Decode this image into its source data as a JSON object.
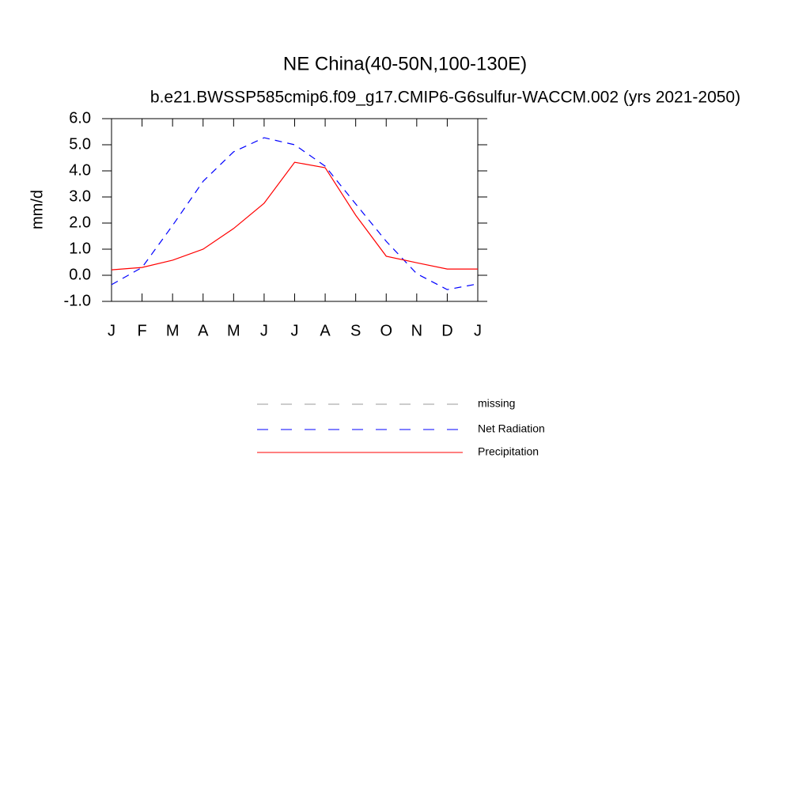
{
  "chart_data": {
    "type": "line",
    "title": "NE China(40-50N,100-130E)",
    "subtitle": "b.e21.BWSSP585cmip6.f09_g17.CMIP6-G6sulfur-WACCM.002 (yrs 2021-2050)",
    "y_label": "mm/d",
    "categories": [
      "J",
      "F",
      "M",
      "A",
      "M",
      "J",
      "J",
      "A",
      "S",
      "O",
      "N",
      "D",
      "J"
    ],
    "series": [
      {
        "name": "missing",
        "color": "#999999",
        "dash": true,
        "values": [
          null,
          null,
          null,
          null,
          null,
          null,
          null,
          null,
          null,
          null,
          null,
          null,
          null
        ]
      },
      {
        "name": "Net Radiation",
        "color": "#0000ff",
        "dash": true,
        "values": [
          -0.36,
          0.3,
          1.91,
          3.6,
          4.73,
          5.27,
          5.0,
          4.18,
          2.73,
          1.3,
          0.06,
          -0.55,
          -0.33
        ]
      },
      {
        "name": "Precipitation",
        "color": "#ff0000",
        "dash": false,
        "values": [
          0.21,
          0.3,
          0.58,
          1.0,
          1.79,
          2.76,
          4.33,
          4.12,
          2.3,
          0.73,
          0.48,
          0.24,
          0.24
        ]
      }
    ],
    "ylim": [
      -1,
      6
    ],
    "yticks": [
      {
        "value": -1,
        "label": "-1.0"
      },
      {
        "value": 0,
        "label": "0.0"
      },
      {
        "value": 1,
        "label": "1.0"
      },
      {
        "value": 2,
        "label": "2.0"
      },
      {
        "value": 3,
        "label": "3.0"
      },
      {
        "value": 4,
        "label": "4.0"
      },
      {
        "value": 5,
        "label": "5.0"
      },
      {
        "value": 6,
        "label": "6.0"
      }
    ]
  }
}
